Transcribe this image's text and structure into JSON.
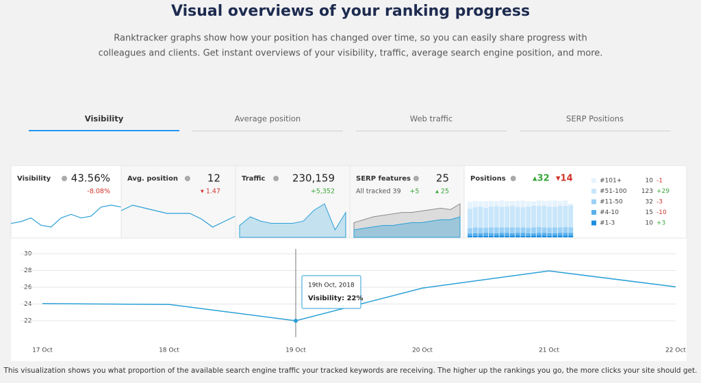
{
  "header": {
    "title": "Visual overviews of your ranking progress",
    "text": [
      "Ranktracker graphs show how your position has changed over time, so you can easily share progress with",
      "colleagues and clients. Get instant overviews of your visibility, traffic, average search engine position, and more."
    ]
  },
  "tabs": [
    "Visibility",
    "Average position",
    "Web traffic",
    "SERP Positions"
  ],
  "cards": [
    {
      "label": "Visibility",
      "value": "43.56%",
      "change": "-8.08%",
      "spark": {
        "style": "line",
        "series": [
          {
            "color": "#2a9fd6",
            "values": [
              23.5,
              24,
              25,
              23,
              22.5,
              25,
              26,
              25,
              25.5,
              28,
              28.5,
              28
            ]
          }
        ]
      }
    },
    {
      "label": "Avg. position",
      "value": "12",
      "change": "▾ 1.47",
      "spark": {
        "style": "line",
        "series": [
          {
            "color": "#2a9fd6",
            "values": [
              12.2,
              12.4,
              12.3,
              12.2,
              12.1,
              12.1,
              12.1,
              11.9,
              11.6,
              11.8,
              12.0
            ]
          }
        ]
      }
    },
    {
      "label": "Traffic",
      "value": "230,159",
      "change": "+5,352",
      "spark": {
        "style": "area",
        "series": [
          {
            "color": "#2a9fd6",
            "values": [
              20,
              24,
              22,
              21,
              21,
              21,
              22,
              27,
              30,
              18,
              26
            ]
          }
        ]
      }
    },
    {
      "label": "SERP features",
      "value": "25",
      "note": "All tracked 39",
      "note_change": "+5",
      "change": "▴ 25",
      "spark": {
        "style": "area",
        "series": [
          {
            "color": "#8a8a8a",
            "values": [
              20,
              22,
              24,
              25,
              26,
              27,
              27,
              28,
              29,
              30,
              29,
              33
            ]
          },
          {
            "color": "#2a9fd6",
            "values": [
              15,
              16,
              17,
              18,
              18,
              19,
              20,
              20,
              21,
              22,
              22,
              24
            ]
          }
        ]
      }
    },
    {
      "label": "Positions",
      "up": "▴32",
      "down": "▾14",
      "stack": [
        {
          "name": "#1-3",
          "count": "10",
          "change": "+3",
          "color": "#1a8ee0",
          "values": [
            8,
            9,
            10,
            9,
            8,
            10,
            11,
            9,
            10,
            10,
            9,
            8,
            10,
            11,
            10,
            9,
            10,
            11,
            10,
            10
          ]
        },
        {
          "name": "#4-10",
          "count": "15",
          "change": "-10",
          "color": "#5ab0ec",
          "values": [
            14,
            15,
            13,
            16,
            15,
            14,
            15,
            16,
            14,
            15,
            17,
            15,
            14,
            15,
            16,
            15,
            14,
            15,
            16,
            15
          ]
        },
        {
          "name": "#11-50",
          "count": "32",
          "change": "-3",
          "color": "#9bd0f5",
          "values": [
            30,
            32,
            31,
            29,
            33,
            32,
            30,
            31,
            33,
            32,
            30,
            31,
            32,
            33,
            31,
            30,
            32,
            31,
            33,
            32
          ]
        },
        {
          "name": "#51-100",
          "count": "123",
          "change": "+29",
          "color": "#c9e6fa",
          "values": [
            110,
            115,
            120,
            112,
            118,
            121,
            117,
            119,
            122,
            116,
            114,
            120,
            123,
            118,
            121,
            119,
            117,
            122,
            120,
            123
          ]
        },
        {
          "name": "#101+",
          "count": "10",
          "change": "-1",
          "color": "#e6f3fc",
          "values": [
            40,
            35,
            30,
            38,
            32,
            28,
            36,
            30,
            26,
            34,
            38,
            30,
            24,
            32,
            28,
            34,
            36,
            26,
            30,
            10
          ]
        }
      ]
    }
  ],
  "chart_data": {
    "type": "line",
    "categories": [
      "17 Oct",
      "18 Oct",
      "19 Oct",
      "20 Oct",
      "21 Oct",
      "22 Oct"
    ],
    "values": [
      24.05,
      23.95,
      22,
      25.9,
      27.95,
      26.05
    ],
    "color": "#2a9fd6",
    "ylim": [
      20,
      31
    ],
    "yticks": [
      22,
      24,
      26,
      28,
      30
    ],
    "grid": true,
    "tooltip": {
      "title": "19th Oct, 2018",
      "label": "Visibility: 22%"
    }
  },
  "footer": "This visualization shows you what proportion of the available search engine traffic your tracked keywords are receiving. The higher up the rankings you go, the more clicks your site should get."
}
